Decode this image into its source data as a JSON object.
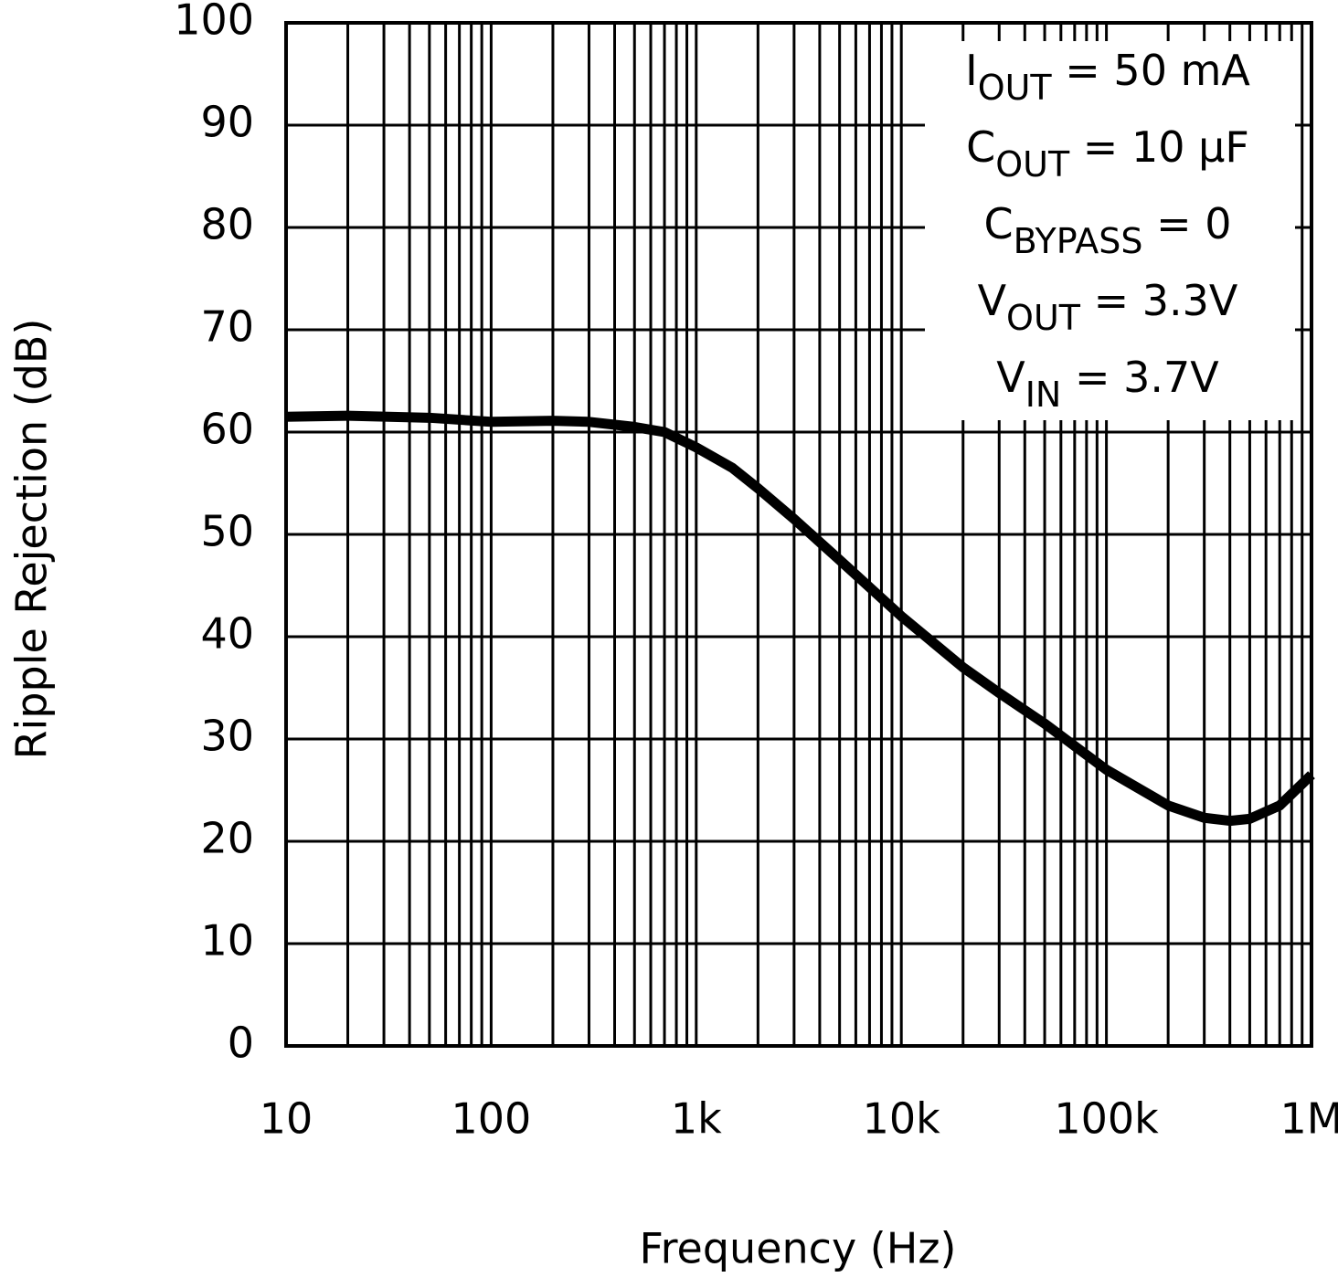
{
  "chart_data": {
    "type": "line",
    "x_label": "Frequency (Hz)",
    "y_label": "Ripple Rejection (dB)",
    "x": [
      10,
      20,
      50,
      100,
      200,
      300,
      500,
      700,
      1000,
      1500,
      2000,
      3000,
      5000,
      10000,
      20000,
      30000,
      50000,
      100000,
      200000,
      300000,
      400000,
      500000,
      700000,
      1000000
    ],
    "values": [
      61.5,
      61.6,
      61.4,
      61.0,
      61.1,
      61.0,
      60.5,
      60.0,
      58.5,
      56.5,
      54.5,
      51.5,
      47.5,
      42,
      37,
      34.5,
      31.5,
      27,
      23.5,
      22.3,
      22,
      22.2,
      23.5,
      26.5
    ],
    "color": "#000000",
    "xlog": true,
    "grid": true,
    "xlim": [
      10,
      1000000
    ],
    "xticks": [
      10,
      100,
      {
        "value": 1000,
        "label": "1k"
      },
      {
        "value": 10000,
        "label": "10k"
      },
      {
        "value": 100000,
        "label": "100k"
      },
      {
        "value": 1000000,
        "label": "1M"
      }
    ],
    "ylim": [
      0,
      100
    ],
    "yticks": [
      0,
      10,
      20,
      30,
      40,
      50,
      60,
      70,
      80,
      90,
      100
    ],
    "annotations": [
      {
        "main": "I",
        "sub": "OUT",
        "rest": " = 50 mA"
      },
      {
        "main": "C",
        "sub": "OUT",
        "rest": " = 10 μF"
      },
      {
        "main": "C",
        "sub": "BYPASS",
        "rest": " = 0"
      },
      {
        "main": "V",
        "sub": "OUT",
        "rest": " = 3.3V"
      },
      {
        "main": "V",
        "sub": "IN",
        "rest": " = 3.7V"
      }
    ]
  }
}
